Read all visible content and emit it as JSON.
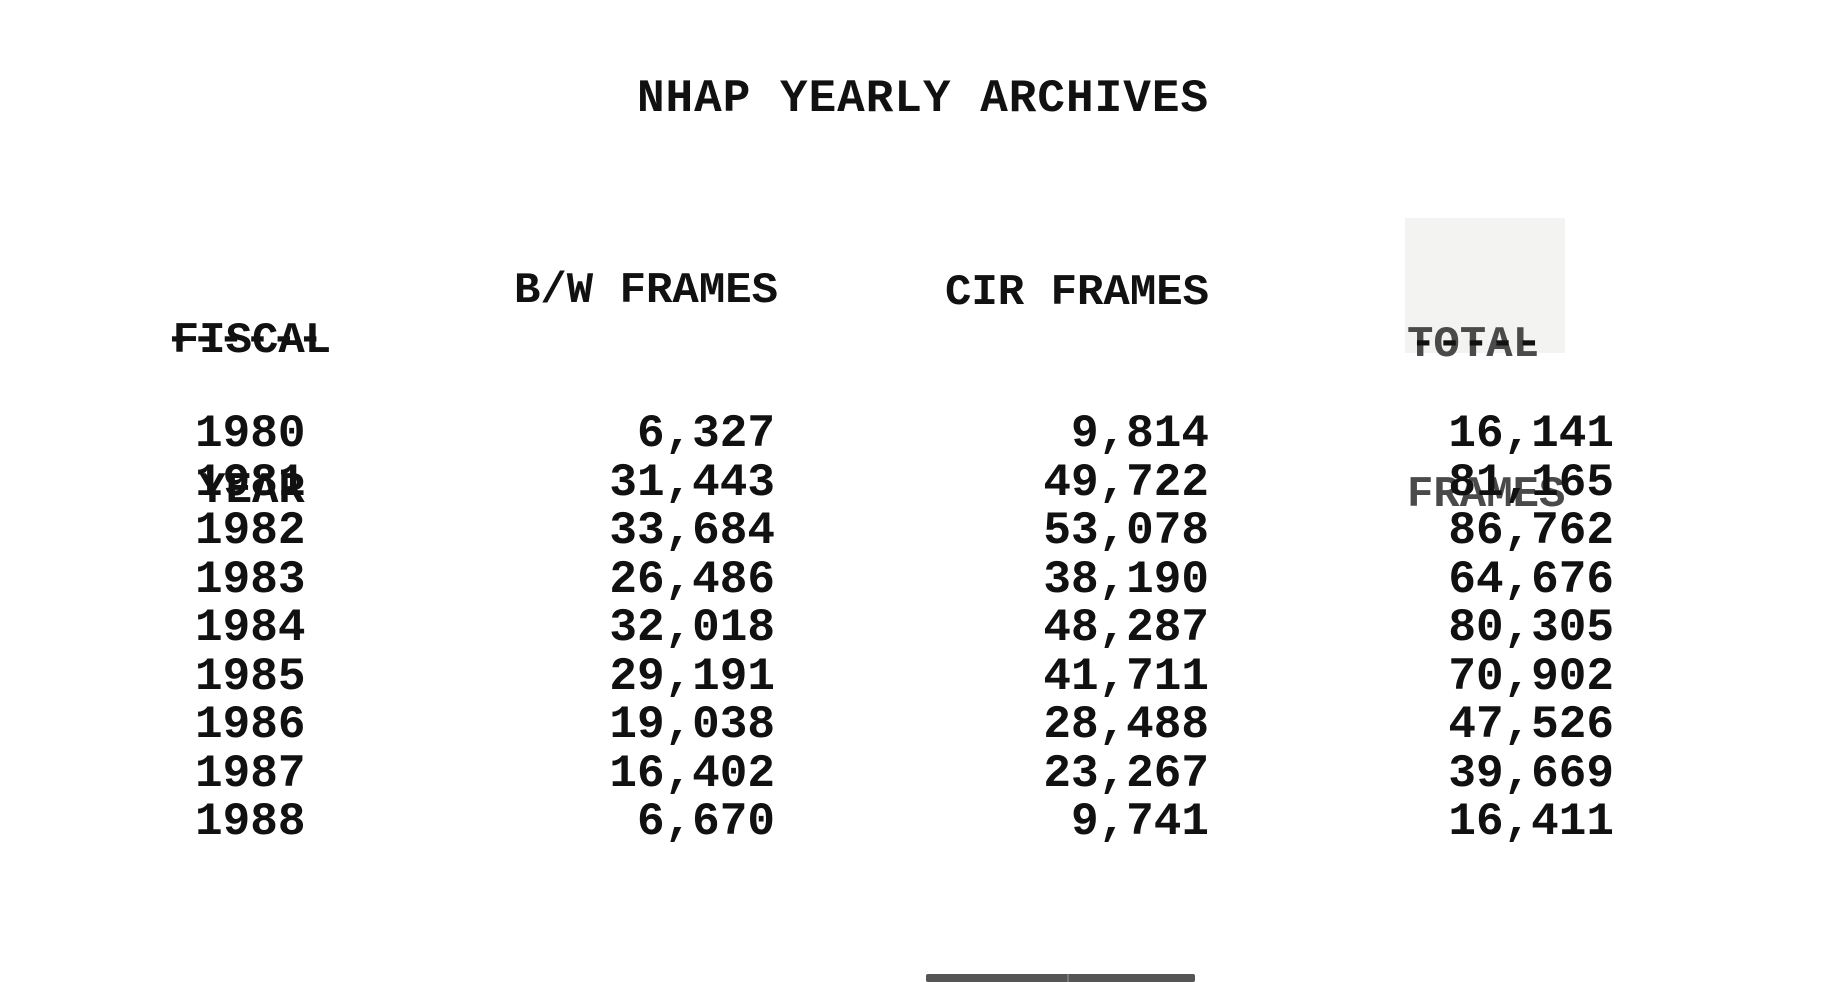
{
  "document": {
    "title": "NHAP YEARLY ARCHIVES",
    "headers": {
      "fiscal_year_line1": "FISCAL",
      "fiscal_year_line2": "YEAR",
      "fiscal_rule": "------",
      "bw_frames": "B/W FRAMES",
      "cir_frames": "CIR FRAMES",
      "total_line1": "TOTAL",
      "total_line2": "FRAMES",
      "total_rule": "-----"
    },
    "rows": [
      {
        "year": "1980",
        "bw": "6,327",
        "cir": "9,814",
        "total": "16,141"
      },
      {
        "year": "1981",
        "bw": "31,443",
        "cir": "49,722",
        "total": "81,165"
      },
      {
        "year": "1982",
        "bw": "33,684",
        "cir": "53,078",
        "total": "86,762"
      },
      {
        "year": "1983",
        "bw": "26,486",
        "cir": "38,190",
        "total": "64,676"
      },
      {
        "year": "1984",
        "bw": "32,018",
        "cir": "48,287",
        "total": "80,305"
      },
      {
        "year": "1985",
        "bw": "29,191",
        "cir": "41,711",
        "total": "70,902"
      },
      {
        "year": "1986",
        "bw": "19,038",
        "cir": "28,488",
        "total": "47,526"
      },
      {
        "year": "1987",
        "bw": "16,402",
        "cir": "23,267",
        "total": "39,669"
      },
      {
        "year": "1988",
        "bw": "6,670",
        "cir": "9,741",
        "total": "16,411"
      }
    ]
  }
}
